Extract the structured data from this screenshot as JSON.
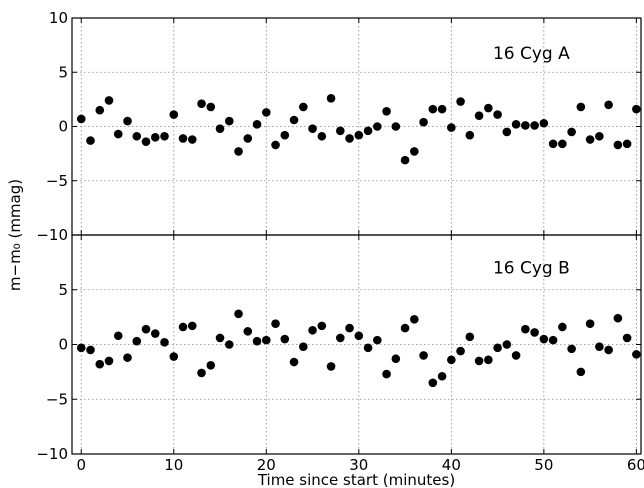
{
  "chart_data": {
    "type": "scatter",
    "xlabel": "Time since start (minutes)",
    "ylabel": "m−m₀ (mmag)",
    "xlim": [
      -1,
      60.5
    ],
    "xticks": [
      0,
      10,
      20,
      30,
      40,
      50,
      60
    ],
    "grid": true,
    "panels": [
      {
        "title": "16 Cyg A",
        "ylim": [
          -10,
          10
        ],
        "yticks": [
          -10,
          -5,
          0,
          5,
          10
        ],
        "series": [
          {
            "x": [
              0,
              1,
              2,
              3,
              4,
              5,
              6,
              7,
              8,
              9,
              10,
              11,
              12,
              13,
              14,
              15,
              16,
              17,
              18,
              19,
              20,
              21,
              22,
              23,
              24,
              25,
              26,
              27,
              28,
              29,
              30,
              31,
              32,
              33,
              34,
              35,
              36,
              37,
              38,
              39,
              40,
              41,
              42,
              43,
              44,
              45,
              46,
              47,
              48,
              49,
              50,
              51,
              52,
              53,
              54,
              55,
              56,
              57,
              58,
              59,
              60
            ],
            "y": [
              0.7,
              -1.3,
              1.5,
              2.4,
              -0.7,
              0.5,
              -0.9,
              -1.4,
              -1.0,
              -0.9,
              1.1,
              -1.1,
              -1.2,
              2.1,
              1.8,
              -0.2,
              0.5,
              -2.3,
              -1.1,
              0.2,
              1.3,
              -1.7,
              -0.8,
              0.6,
              1.8,
              -0.2,
              -0.9,
              2.6,
              -0.4,
              -1.1,
              -0.8,
              -0.4,
              0.0,
              1.4,
              0.0,
              -3.1,
              -2.3,
              0.4,
              1.6,
              1.6,
              -0.1,
              2.3,
              -0.8,
              1.0,
              1.7,
              1.1,
              -0.5,
              0.2,
              0.1,
              0.1,
              0.3,
              -1.6,
              -1.6,
              -0.5,
              1.8,
              -1.2,
              -0.9,
              2.0,
              -1.7,
              -1.6,
              1.6
            ]
          }
        ]
      },
      {
        "title": "16 Cyg B",
        "ylim": [
          -10,
          10
        ],
        "yticks": [
          -10,
          -5,
          0,
          5
        ],
        "series": [
          {
            "x": [
              0,
              1,
              2,
              3,
              4,
              5,
              6,
              7,
              8,
              9,
              10,
              11,
              12,
              13,
              14,
              15,
              16,
              17,
              18,
              19,
              20,
              21,
              22,
              23,
              24,
              25,
              26,
              27,
              28,
              29,
              30,
              31,
              32,
              33,
              34,
              35,
              36,
              37,
              38,
              39,
              40,
              41,
              42,
              43,
              44,
              45,
              46,
              47,
              48,
              49,
              50,
              51,
              52,
              53,
              54,
              55,
              56,
              57,
              58,
              59,
              60
            ],
            "y": [
              -0.3,
              -0.5,
              -1.8,
              -1.5,
              0.8,
              -1.2,
              0.3,
              1.4,
              1.0,
              0.2,
              -1.1,
              1.6,
              1.7,
              -2.6,
              -1.9,
              0.6,
              0.0,
              2.8,
              1.2,
              0.3,
              0.4,
              1.9,
              0.5,
              -1.6,
              -0.2,
              1.3,
              1.7,
              -2.0,
              0.6,
              1.5,
              0.8,
              -0.3,
              0.4,
              -2.7,
              -1.3,
              1.5,
              2.3,
              -1.0,
              -3.5,
              -2.9,
              -1.4,
              -0.6,
              0.7,
              -1.5,
              -1.4,
              -0.3,
              0.0,
              -1.0,
              1.4,
              1.1,
              0.5,
              0.4,
              1.6,
              -0.4,
              -2.5,
              1.9,
              -0.2,
              -0.5,
              2.4,
              0.6,
              -0.9
            ]
          }
        ]
      }
    ]
  }
}
